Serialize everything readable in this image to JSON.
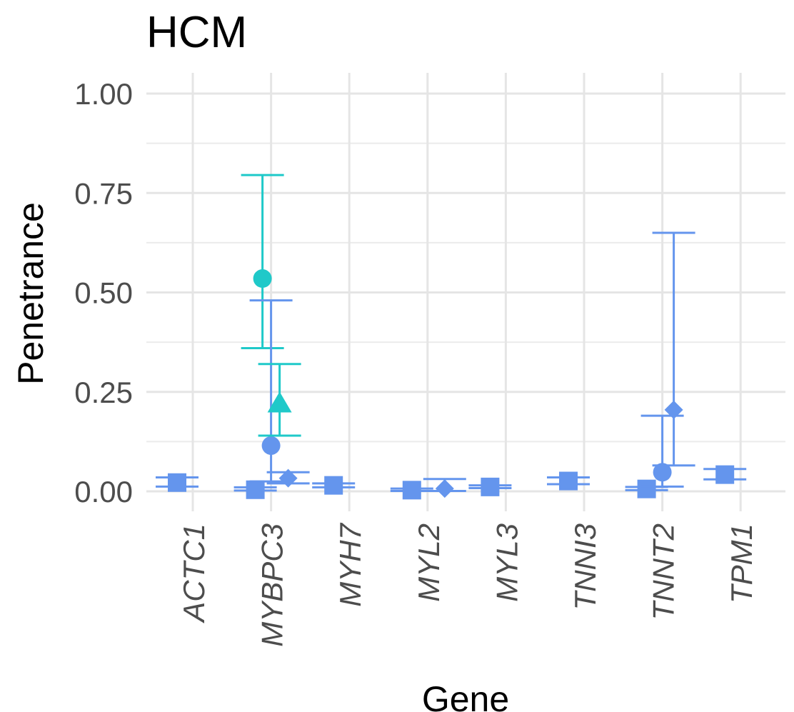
{
  "chart_data": {
    "type": "scatter",
    "subtype": "point-range with error bars",
    "title": "HCM",
    "xlabel": "Gene",
    "ylabel": "Penetrance",
    "ylim": [
      -0.05,
      1.05
    ],
    "yticks": [
      "0.00",
      "0.25",
      "0.50",
      "0.75",
      "1.00"
    ],
    "ytick_values": [
      0,
      0.25,
      0.5,
      0.75,
      1.0
    ],
    "categories": [
      "ACTC1",
      "MYBPC3",
      "MYH7",
      "MYL2",
      "MYL3",
      "TNNI3",
      "TNNT2",
      "TPM1"
    ],
    "grid": true,
    "legend": "none",
    "colors": {
      "teal": "#1FC9C9",
      "blue": "#6495ED"
    },
    "points": [
      {
        "gene": "ACTC1",
        "shape": "square",
        "color": "blue",
        "y": 0.022,
        "lo": 0.012,
        "hi": 0.035
      },
      {
        "gene": "MYBPC3",
        "shape": "square",
        "color": "blue",
        "y": 0.004,
        "lo": 0.002,
        "hi": 0.01
      },
      {
        "gene": "MYBPC3",
        "shape": "circle",
        "color": "teal",
        "y": 0.535,
        "lo": 0.36,
        "hi": 0.795
      },
      {
        "gene": "MYBPC3",
        "shape": "circle",
        "color": "blue",
        "y": 0.115,
        "lo": 0.025,
        "hi": 0.48
      },
      {
        "gene": "MYBPC3",
        "shape": "triangle",
        "color": "teal",
        "y": 0.22,
        "lo": 0.14,
        "hi": 0.32
      },
      {
        "gene": "MYBPC3",
        "shape": "diamond",
        "color": "blue",
        "y": 0.033,
        "lo": 0.02,
        "hi": 0.048
      },
      {
        "gene": "MYH7",
        "shape": "square",
        "color": "blue",
        "y": 0.015,
        "lo": 0.01,
        "hi": 0.02
      },
      {
        "gene": "MYL2",
        "shape": "square",
        "color": "blue",
        "y": 0.003,
        "lo": 0.001,
        "hi": 0.007
      },
      {
        "gene": "MYL2",
        "shape": "diamond",
        "color": "blue",
        "y": 0.007,
        "lo": 0.001,
        "hi": 0.031
      },
      {
        "gene": "MYL3",
        "shape": "square",
        "color": "blue",
        "y": 0.011,
        "lo": 0.008,
        "hi": 0.015
      },
      {
        "gene": "TNNI3",
        "shape": "square",
        "color": "blue",
        "y": 0.026,
        "lo": 0.018,
        "hi": 0.035
      },
      {
        "gene": "TNNT2",
        "shape": "square",
        "color": "blue",
        "y": 0.006,
        "lo": 0.003,
        "hi": 0.011
      },
      {
        "gene": "TNNT2",
        "shape": "circle",
        "color": "blue",
        "y": 0.048,
        "lo": 0.012,
        "hi": 0.19
      },
      {
        "gene": "TNNT2",
        "shape": "diamond",
        "color": "blue",
        "y": 0.205,
        "lo": 0.065,
        "hi": 0.65
      },
      {
        "gene": "TPM1",
        "shape": "square",
        "color": "blue",
        "y": 0.042,
        "lo": 0.03,
        "hi": 0.056
      }
    ]
  }
}
